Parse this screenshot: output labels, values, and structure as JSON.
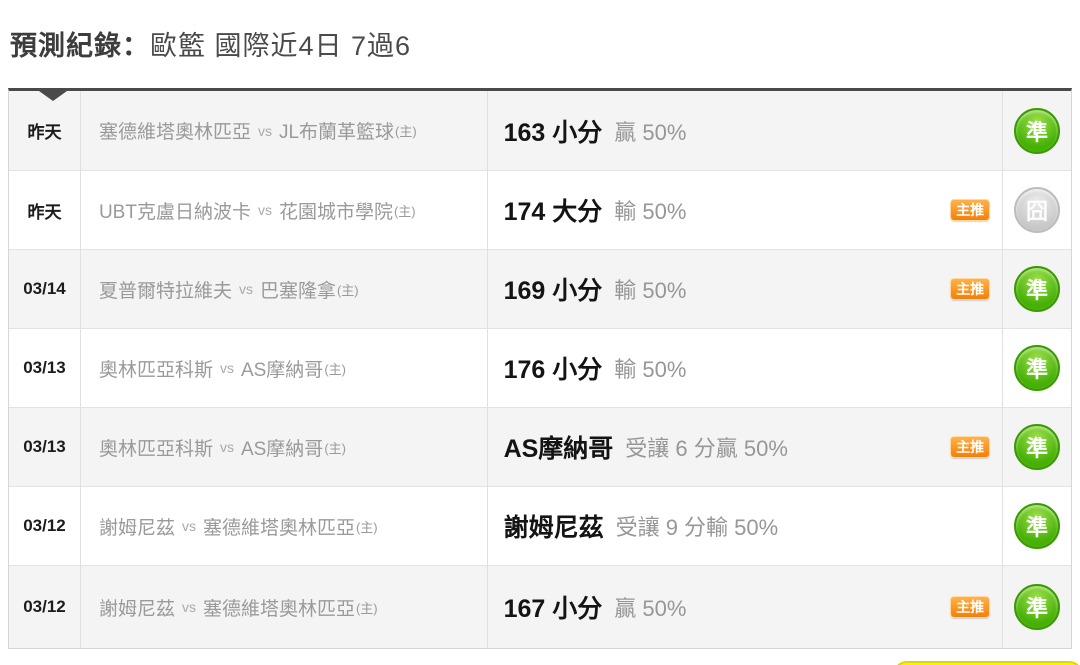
{
  "header": {
    "title_label": "預測紀錄：",
    "title_value": "歐籃 國際近4日 7過6"
  },
  "badges": {
    "main_pick_label": "主推",
    "hit_label": "準",
    "miss_label": "囧"
  },
  "colors": {
    "hit_green": "#47b007",
    "miss_gray": "#c7c7c7",
    "main_pick_orange": "#f57f05",
    "bottom_button_yellow": "#ffec1f",
    "row_alt_background": "#f4f4f4",
    "table_top_border": "#4a4a4a"
  },
  "table": {
    "vs_label": "vs",
    "rows": [
      {
        "date": "昨天",
        "home": "塞德維塔奧林匹亞",
        "away": "JL布蘭革籃球",
        "home_mark": "(主)",
        "pick": "163 小分",
        "detail": "贏 50%",
        "main_pick": false,
        "outcome": "hit"
      },
      {
        "date": "昨天",
        "home": "UBT克盧日納波卡",
        "away": "花園城市學院",
        "home_mark": "(主)",
        "pick": "174 大分",
        "detail": "輸 50%",
        "main_pick": true,
        "outcome": "miss"
      },
      {
        "date": "03/14",
        "home": "夏普爾特拉維夫",
        "away": "巴塞隆拿",
        "home_mark": "(主)",
        "pick": "169 小分",
        "detail": "輸 50%",
        "main_pick": true,
        "outcome": "hit"
      },
      {
        "date": "03/13",
        "home": "奧林匹亞科斯",
        "away": "AS摩納哥",
        "home_mark": "(主)",
        "pick": "176 小分",
        "detail": "輸 50%",
        "main_pick": false,
        "outcome": "hit"
      },
      {
        "date": "03/13",
        "home": "奧林匹亞科斯",
        "away": "AS摩納哥",
        "home_mark": "(主)",
        "pick": "AS摩納哥",
        "detail": "受讓 6 分贏 50%",
        "main_pick": true,
        "outcome": "hit"
      },
      {
        "date": "03/12",
        "home": "謝姆尼茲",
        "away": "塞德維塔奧林匹亞",
        "home_mark": "(主)",
        "pick": "謝姆尼茲",
        "detail": "受讓 9 分輸 50%",
        "main_pick": false,
        "outcome": "hit"
      },
      {
        "date": "03/12",
        "home": "謝姆尼茲",
        "away": "塞德維塔奧林匹亞",
        "home_mark": "(主)",
        "pick": "167 小分",
        "detail": "贏 50%",
        "main_pick": true,
        "outcome": "hit"
      }
    ]
  }
}
